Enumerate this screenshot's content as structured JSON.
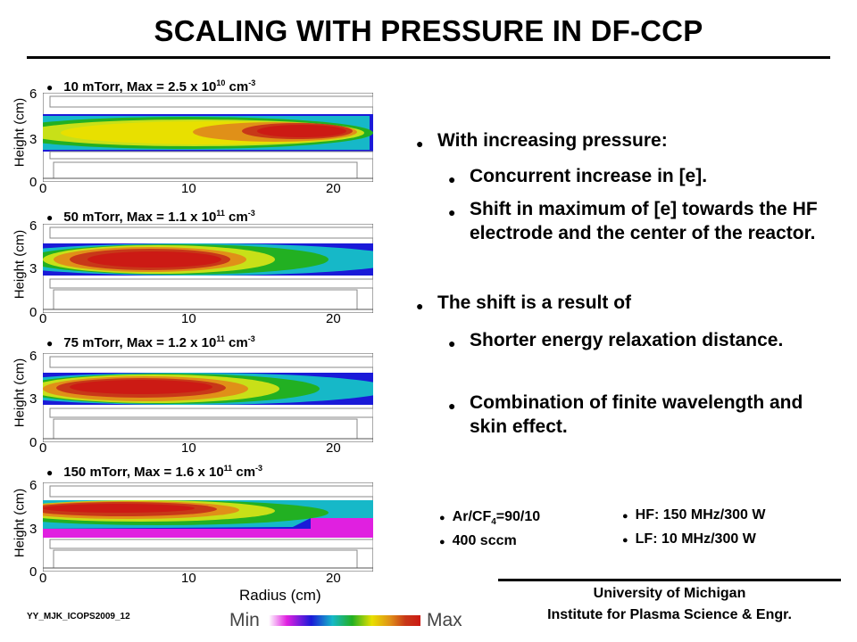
{
  "title": "SCALING WITH  PRESSURE IN DF-CCP",
  "panels": [
    {
      "label_pre": "10 mTorr, Max = 2.5 x 10",
      "label_exp": "10",
      "label_unit": " cm",
      "label_uexp": "-3"
    },
    {
      "label_pre": "50 mTorr, Max = 1.1 x 10",
      "label_exp": "11",
      "label_unit": " cm",
      "label_uexp": "-3"
    },
    {
      "label_pre": "75 mTorr, Max = 1.2 x 10",
      "label_exp": "11",
      "label_unit": " cm",
      "label_uexp": "-3"
    },
    {
      "label_pre": "150 mTorr, Max = 1.6 x 10",
      "label_exp": "11",
      "label_unit": " cm",
      "label_uexp": "-3"
    }
  ],
  "axes": {
    "ylabel": "Height (cm)",
    "xlabel": "Radius (cm)",
    "yticks": [
      "6",
      "3",
      "0"
    ],
    "xticks": [
      "0",
      "10",
      "20"
    ]
  },
  "bullets": {
    "b1": "With increasing pressure:",
    "b1_sub1": "Concurrent increase in [e].",
    "b1_sub2": "Shift in maximum of [e] towards the HF electrode and the center of the reactor.",
    "b2": "The shift is a result of",
    "b2_sub1": "Shorter energy relaxation distance.",
    "b2_sub2": "Combination of finite wavelength and skin effect."
  },
  "conditions": {
    "gas_pre": "Ar/CF",
    "gas_sub": "4",
    "gas_post": "=90/10",
    "flow": "400 sccm",
    "hf": "HF: 150 MHz/300 W",
    "lf": "LF: 10 MHz/300 W"
  },
  "institution": {
    "line1": "University of Michigan",
    "line2": "Institute for Plasma Science & Engr."
  },
  "footer_id": "YY_MJK_ICOPS2009_12",
  "colorbar": {
    "min": "Min",
    "max": "Max"
  },
  "bullet_glyph": "●",
  "colors": {
    "plasma_max": "#cc1a14",
    "plasma_edge": "#1a1ad8"
  }
}
